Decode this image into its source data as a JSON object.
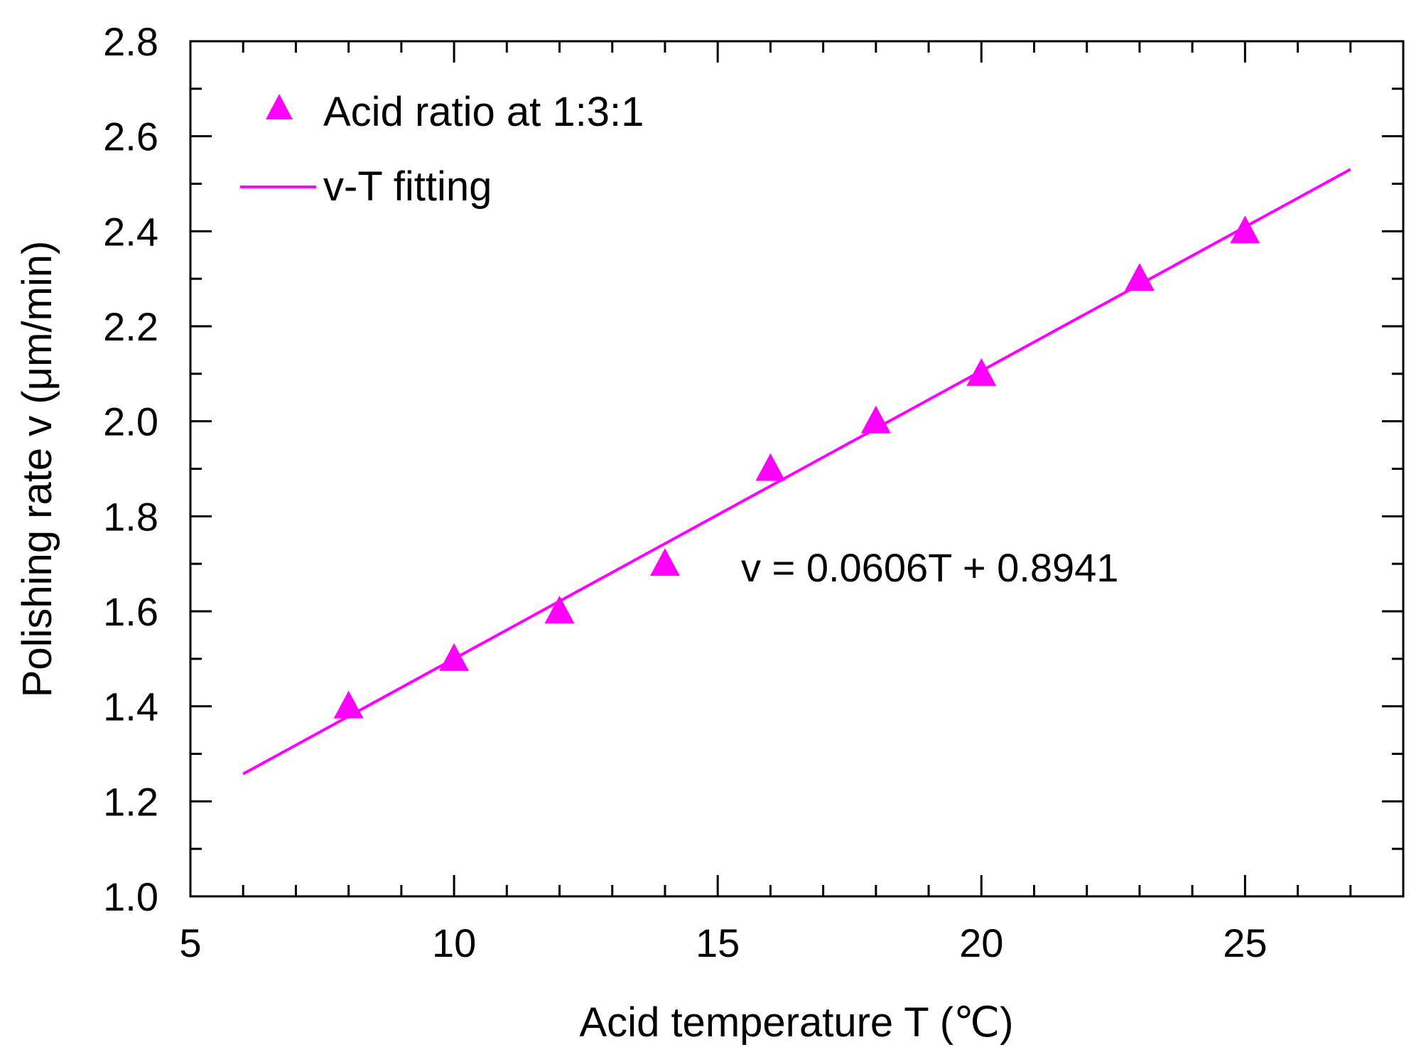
{
  "chart_data": {
    "type": "scatter",
    "xlabel": "Acid temperature T (℃)",
    "ylabel": "Polishing rate v (μm/min)",
    "xlim": [
      5,
      28
    ],
    "ylim": [
      1.0,
      2.8
    ],
    "x_ticks": [
      5,
      10,
      15,
      20,
      25
    ],
    "x_tick_labels": [
      "5",
      "10",
      "15",
      "20",
      "25"
    ],
    "y_ticks": [
      1.0,
      1.2,
      1.4,
      1.6,
      1.8,
      2.0,
      2.2,
      2.4,
      2.6,
      2.8
    ],
    "y_tick_labels": [
      "1.0",
      "1.2",
      "1.4",
      "1.6",
      "1.8",
      "2.0",
      "2.2",
      "2.4",
      "2.6",
      "2.8"
    ],
    "grid": false,
    "legend_position": "top-left",
    "series": [
      {
        "name": "Acid ratio at 1:3:1",
        "type": "scatter",
        "marker": "triangle",
        "color": "#ff00ff",
        "x": [
          8,
          10,
          12,
          14,
          16,
          18,
          20,
          23,
          25
        ],
        "y": [
          1.4,
          1.5,
          1.6,
          1.7,
          1.9,
          2.0,
          2.1,
          2.3,
          2.4
        ]
      },
      {
        "name": "v-T fitting",
        "type": "line",
        "color": "#ff00ff",
        "slope": 0.0606,
        "intercept": 0.8941,
        "x_range": [
          6,
          27
        ]
      }
    ],
    "annotations": [
      {
        "text": "v = 0.0606T + 0.8941",
        "x": 15.5,
        "y": 1.7
      }
    ]
  }
}
